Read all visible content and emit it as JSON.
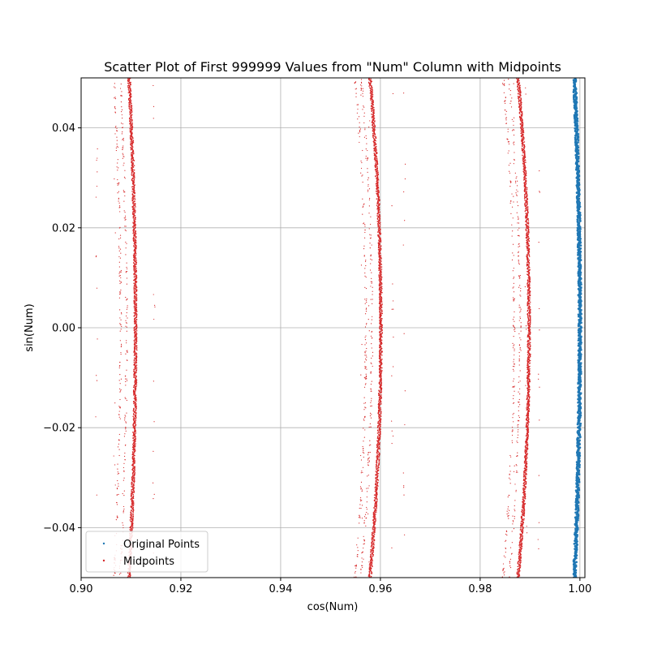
{
  "chart_data": {
    "type": "scatter",
    "title": "Scatter Plot of First 999999 Values from \"Num\" Column with Midpoints",
    "xlabel": "cos(Num)",
    "ylabel": "sin(Num)",
    "xlim": [
      0.9,
      1.001
    ],
    "ylim": [
      -0.05,
      0.05
    ],
    "xticks": [
      0.9,
      0.92,
      0.94,
      0.96,
      0.98,
      1.0
    ],
    "xtick_labels": [
      "0.90",
      "0.92",
      "0.94",
      "0.96",
      "0.98",
      "1.00"
    ],
    "yticks": [
      -0.04,
      -0.02,
      0.0,
      0.02,
      0.04
    ],
    "ytick_labels": [
      "−0.04",
      "−0.02",
      "0.00",
      "0.02",
      "0.04"
    ],
    "grid": true,
    "legend_position": "lower-left",
    "series": [
      {
        "name": "Original Points",
        "color": "#1f77b4",
        "marker": "point",
        "clusters": [
          {
            "x_at_ymax": 0.9989,
            "x_at_zero": 1.0,
            "x_at_ymin": 0.9989,
            "width": 0.0003
          }
        ]
      },
      {
        "name": "Midpoints",
        "color": "#d62728",
        "marker": "point",
        "clusters": [
          {
            "x_at_ymax": 0.9096,
            "x_at_zero": 0.9109,
            "x_at_ymin": 0.9096,
            "width": 0.0003,
            "satellites": [
              0.9031,
              0.9067,
              0.9146
            ]
          },
          {
            "x_at_ymax": 0.9579,
            "x_at_zero": 0.9601,
            "x_at_ymin": 0.9579,
            "width": 0.0003,
            "satellites": [
              0.9562,
              0.9577,
              0.9624,
              0.9648
            ]
          },
          {
            "x_at_ymax": 0.9876,
            "x_at_zero": 0.9898,
            "x_at_ymin": 0.9876,
            "width": 0.0003,
            "satellites": [
              0.9867,
              0.9892,
              0.9918
            ]
          }
        ]
      }
    ]
  }
}
